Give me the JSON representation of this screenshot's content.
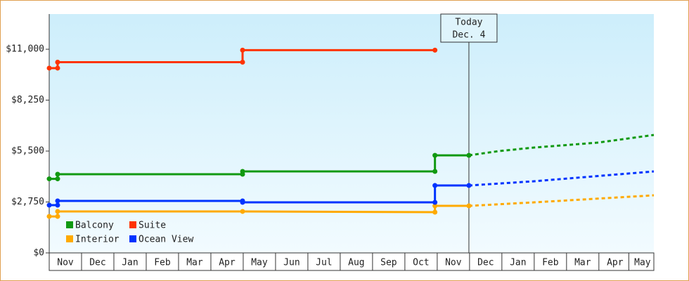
{
  "chart_data": {
    "type": "line",
    "xlim": [
      0,
      18.7
    ],
    "ylim": [
      0,
      12900
    ],
    "yticks": [
      {
        "value": 0,
        "label": "$0"
      },
      {
        "value": 2750,
        "label": "$2,750"
      },
      {
        "value": 5500,
        "label": "$5,500"
      },
      {
        "value": 8250,
        "label": "$8,250"
      },
      {
        "value": 11000,
        "label": "$11,000"
      }
    ],
    "xticks": [
      {
        "value": 0.5,
        "label": "Nov"
      },
      {
        "value": 1.5,
        "label": "Dec"
      },
      {
        "value": 2.5,
        "label": "Jan"
      },
      {
        "value": 3.5,
        "label": "Feb"
      },
      {
        "value": 4.5,
        "label": "Mar"
      },
      {
        "value": 5.5,
        "label": "Apr"
      },
      {
        "value": 6.5,
        "label": "May"
      },
      {
        "value": 7.5,
        "label": "Jun"
      },
      {
        "value": 8.5,
        "label": "Jul"
      },
      {
        "value": 9.5,
        "label": "Aug"
      },
      {
        "value": 10.5,
        "label": "Sep"
      },
      {
        "value": 11.5,
        "label": "Oct"
      },
      {
        "value": 12.5,
        "label": "Nov"
      },
      {
        "value": 13.5,
        "label": "Dec"
      },
      {
        "value": 14.5,
        "label": "Jan"
      },
      {
        "value": 15.5,
        "label": "Feb"
      },
      {
        "value": 16.5,
        "label": "Mar"
      },
      {
        "value": 17.5,
        "label": "Apr"
      },
      {
        "value": 18.35,
        "label": "May"
      }
    ],
    "annotation": {
      "x": 12.98,
      "lines": [
        "Today",
        "Dec. 4"
      ]
    },
    "legend": "lower left",
    "series": [
      {
        "name": "Balcony",
        "color": "#119911",
        "x": [
          0,
          0.26,
          0.26,
          5.98,
          5.98,
          11.93,
          11.93,
          12.98
        ],
        "values": [
          4000,
          4000,
          4250,
          4250,
          4400,
          4400,
          5270,
          5270
        ],
        "forecast_x": [
          12.98,
          13.91,
          15.0,
          16.96,
          18.7
        ],
        "forecast_values": [
          5270,
          5500,
          5690,
          5955,
          6370
        ]
      },
      {
        "name": "Suite",
        "color": "#ff3300",
        "x": [
          0,
          0.26,
          0.26,
          5.98,
          5.98,
          11.93
        ],
        "values": [
          9980,
          9980,
          10300,
          10300,
          10950,
          10950
        ]
      },
      {
        "name": "Interior",
        "color": "#ffaa00",
        "x": [
          0,
          0.26,
          0.26,
          5.98,
          11.93,
          11.93,
          12.98
        ],
        "values": [
          1970,
          1970,
          2240,
          2240,
          2200,
          2540,
          2540
        ],
        "forecast_x": [
          12.98,
          15.0,
          18.7
        ],
        "forecast_values": [
          2540,
          2730,
          3110
        ]
      },
      {
        "name": "Ocean View",
        "color": "#0033ff",
        "x": [
          0,
          0.26,
          0.26,
          5.98,
          5.98,
          11.93,
          11.93,
          12.98
        ],
        "values": [
          2580,
          2580,
          2810,
          2810,
          2730,
          2730,
          3640,
          3640
        ],
        "forecast_x": [
          12.98,
          15.0,
          18.7
        ],
        "forecast_values": [
          3640,
          3870,
          4400
        ]
      }
    ]
  }
}
